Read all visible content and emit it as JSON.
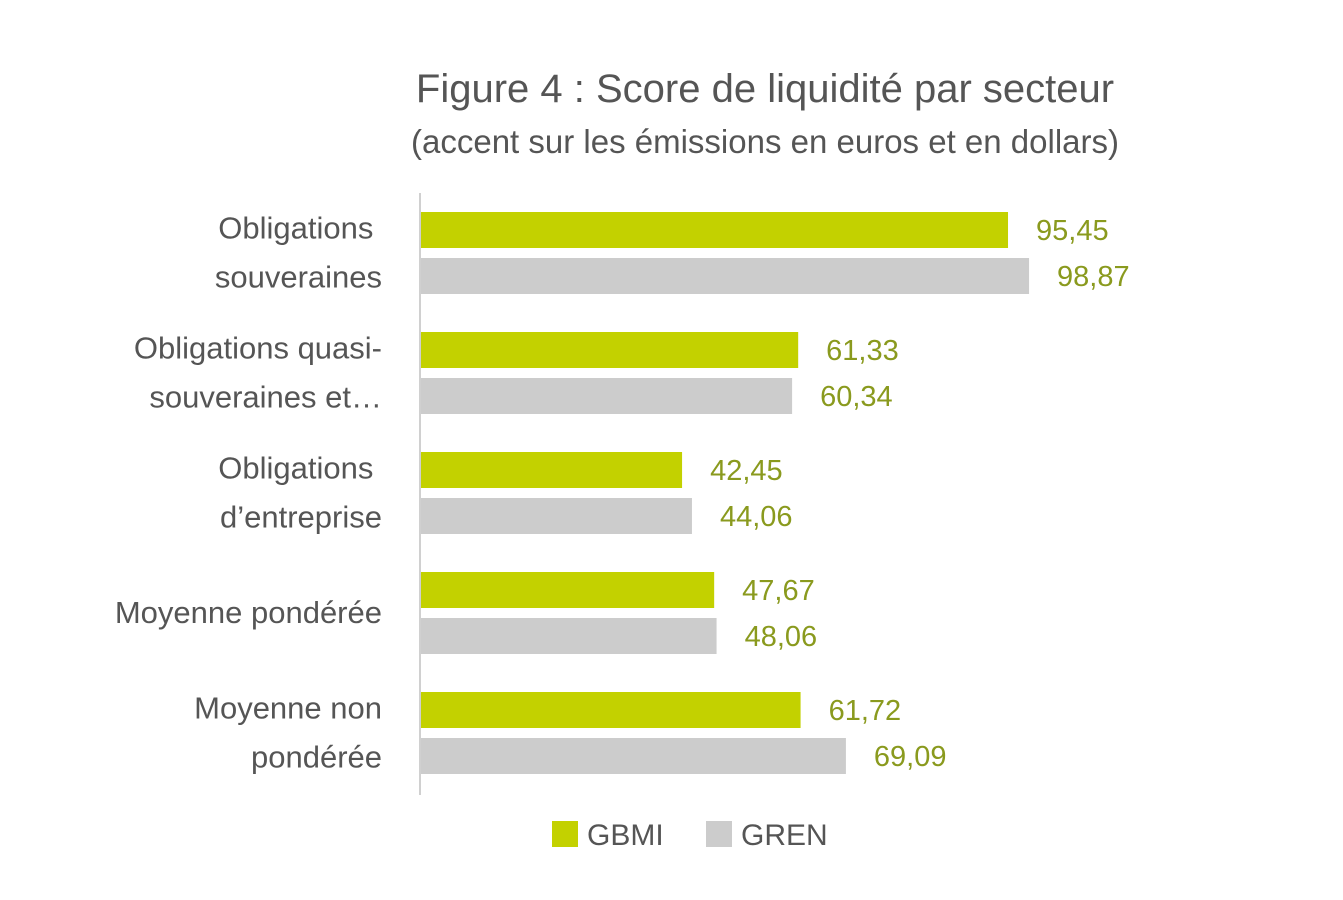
{
  "colors": {
    "gbmi": "#c3d100",
    "gren": "#cccccc",
    "value_label": "#8a9a1e",
    "text": "#555555",
    "axis": "#d0d0d0"
  },
  "chart_data": {
    "type": "bar",
    "orientation": "horizontal",
    "title": "Figure 4 : Score de liquidité par secteur",
    "subtitle": "(accent sur les émissions en euros et en dollars)",
    "categories": [
      [
        "Obligations ",
        "souveraines"
      ],
      [
        "Obligations quasi-",
        "souveraines et…"
      ],
      [
        "Obligations ",
        "d’entreprise"
      ],
      [
        "Moyenne pondérée"
      ],
      [
        "Moyenne non",
        "pondérée   "
      ]
    ],
    "series": [
      {
        "name": "GBMI",
        "values": [
          95.45,
          61.33,
          42.45,
          47.67,
          61.72
        ],
        "labels": [
          "95,45",
          "61,33",
          "42,45",
          "47,67",
          "61,72"
        ]
      },
      {
        "name": "GREN",
        "values": [
          98.87,
          60.34,
          44.06,
          48.06,
          69.09
        ],
        "labels": [
          "98,87",
          "60,34",
          "44,06",
          "48,06",
          "69,09"
        ]
      }
    ],
    "xlim": [
      0,
      100
    ],
    "grid": false,
    "legend": "bottom"
  }
}
